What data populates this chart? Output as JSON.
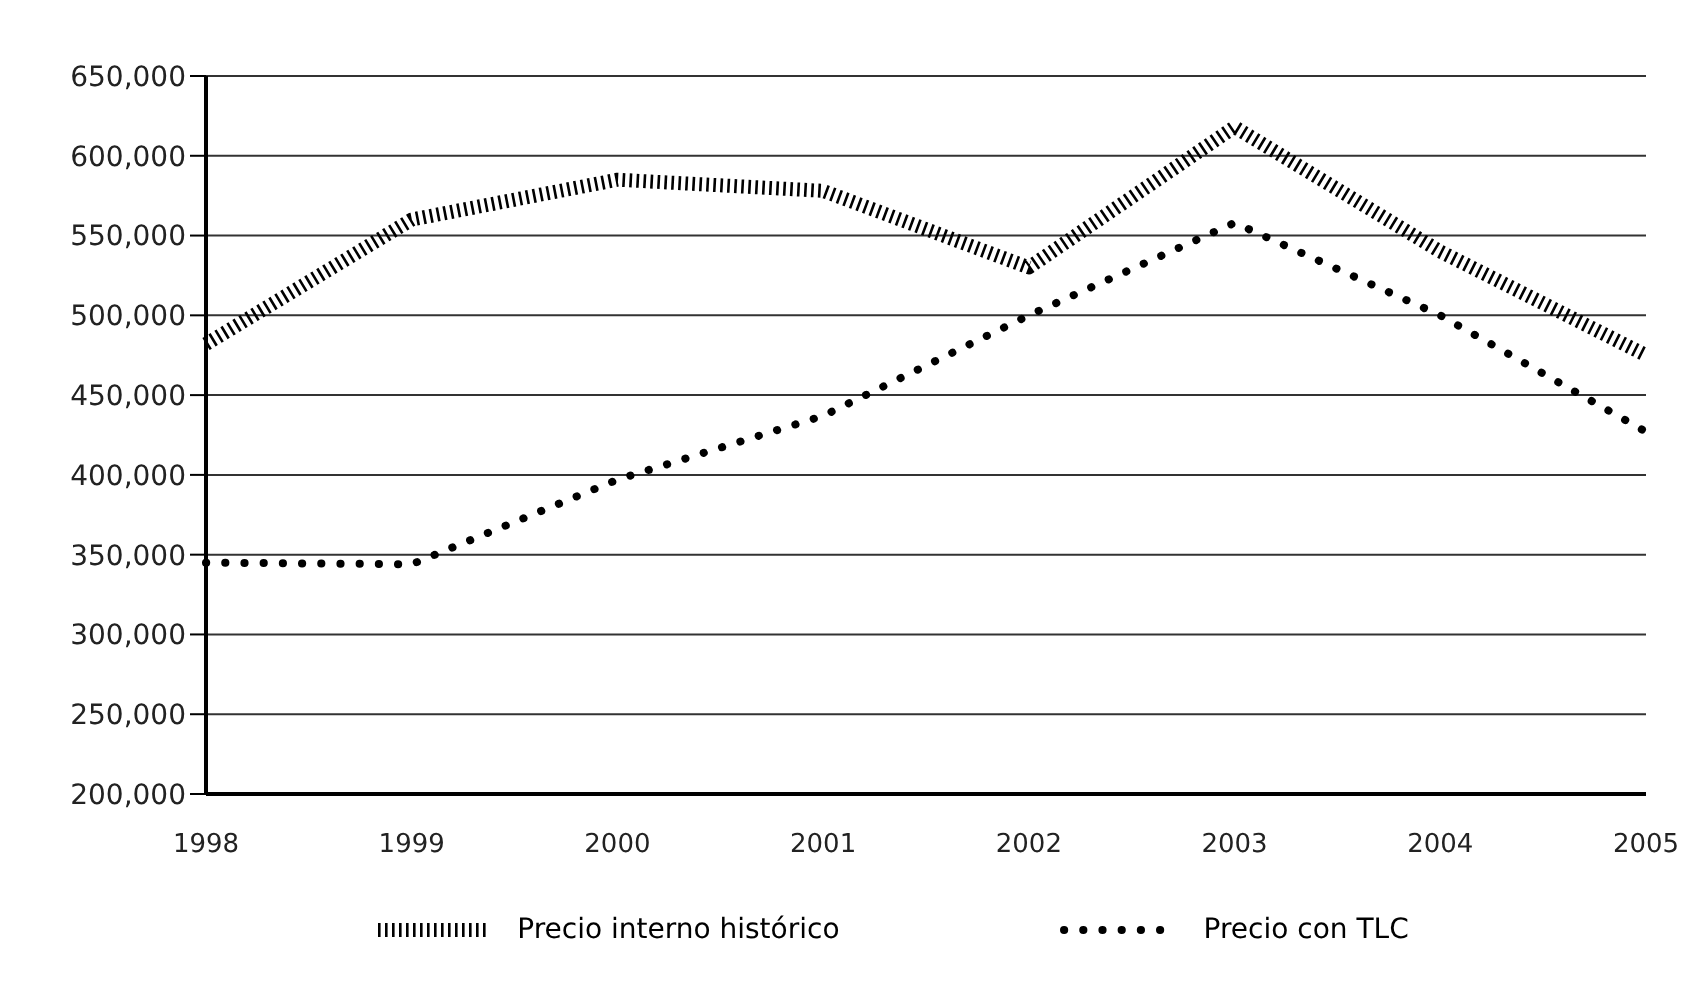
{
  "chart_data": {
    "type": "line",
    "categories": [
      "1998",
      "1999",
      "2000",
      "2001",
      "2002",
      "2003",
      "2004",
      "2005"
    ],
    "series": [
      {
        "name": "Precio  interno histórico",
        "color": "#000000",
        "line_style": "dashed",
        "values": [
          482000,
          560000,
          585000,
          578000,
          530000,
          618000,
          540000,
          475000
        ]
      },
      {
        "name": "Precio con TLC",
        "color": "#000000",
        "line_style": "dotted",
        "values": [
          345000,
          344000,
          397000,
          437000,
          500000,
          558000,
          500000,
          427000
        ]
      }
    ],
    "ylim": [
      200000,
      650000
    ],
    "yticks": [
      {
        "value": 200000,
        "label": "200,000"
      },
      {
        "value": 250000,
        "label": "250,000"
      },
      {
        "value": 300000,
        "label": "300,000"
      },
      {
        "value": 350000,
        "label": "350,000"
      },
      {
        "value": 400000,
        "label": "400,000"
      },
      {
        "value": 450000,
        "label": "450,000"
      },
      {
        "value": 500000,
        "label": "500,000"
      },
      {
        "value": 550000,
        "label": "550,000"
      },
      {
        "value": 600000,
        "label": "600,000"
      },
      {
        "value": 650000,
        "label": "650,000"
      }
    ],
    "grid": "y",
    "legend": "bottom",
    "marker": "none"
  }
}
